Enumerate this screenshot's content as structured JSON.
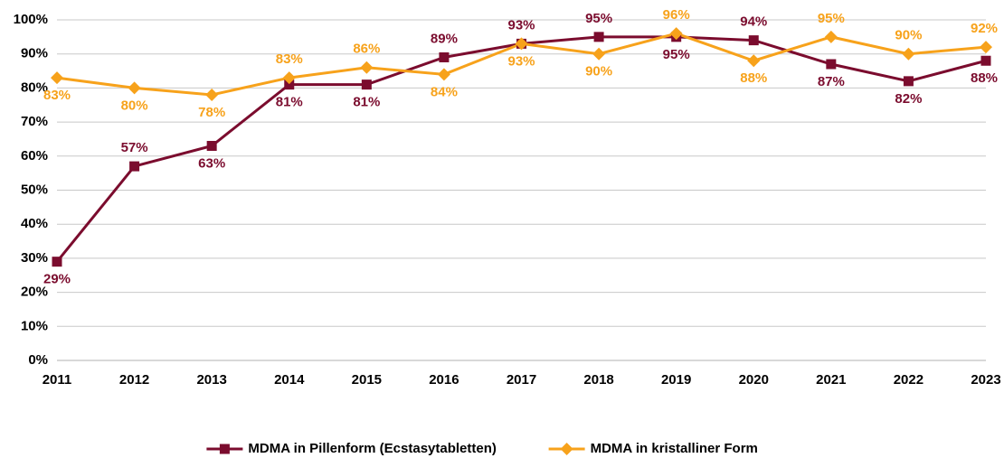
{
  "chart_data": {
    "type": "line",
    "categories": [
      "2011",
      "2012",
      "2013",
      "2014",
      "2015",
      "2016",
      "2017",
      "2018",
      "2019",
      "2020",
      "2021",
      "2022",
      "2023"
    ],
    "series": [
      {
        "name": "MDMA in Pillenform (Ecstasytabletten)",
        "color": "#7b0c2e",
        "marker": "square",
        "values": [
          29,
          57,
          63,
          81,
          81,
          89,
          93,
          95,
          95,
          94,
          87,
          82,
          88
        ],
        "value_labels": [
          "29%",
          "57%",
          "63%",
          "81%",
          "81%",
          "89%",
          "93%",
          "95%",
          "95%",
          "94%",
          "87%",
          "82%",
          "88%"
        ]
      },
      {
        "name": "MDMA in kristalliner Form",
        "color": "#f7a21b",
        "marker": "diamond",
        "values": [
          83,
          80,
          78,
          83,
          86,
          84,
          93,
          90,
          96,
          88,
          95,
          90,
          92
        ],
        "value_labels": [
          "83%",
          "80%",
          "78%",
          "83%",
          "86%",
          "84%",
          "93%",
          "90%",
          "96%",
          "88%",
          "95%",
          "90%",
          "92%"
        ]
      }
    ],
    "ylim": [
      0,
      100
    ],
    "yticks": [
      {
        "value": 0,
        "label": "0%"
      },
      {
        "value": 10,
        "label": "10%"
      },
      {
        "value": 20,
        "label": "20%"
      },
      {
        "value": 30,
        "label": "30%"
      },
      {
        "value": 40,
        "label": "40%"
      },
      {
        "value": 50,
        "label": "50%"
      },
      {
        "value": 60,
        "label": "60%"
      },
      {
        "value": 70,
        "label": "70%"
      },
      {
        "value": 80,
        "label": "80%"
      },
      {
        "value": 90,
        "label": "90%"
      },
      {
        "value": 100,
        "label": "100%"
      }
    ],
    "grid": true,
    "legend": "bottom"
  }
}
